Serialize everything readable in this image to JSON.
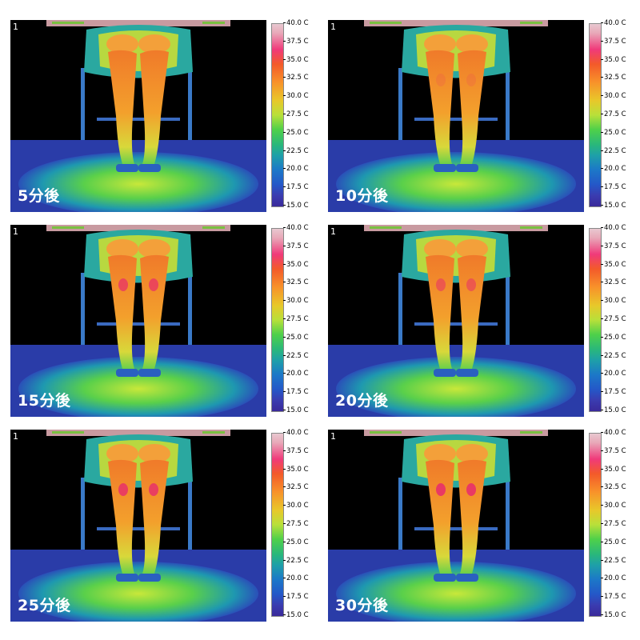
{
  "panels": [
    {
      "frame": "1",
      "caption": "5分後"
    },
    {
      "frame": "1",
      "caption": "10分後"
    },
    {
      "frame": "1",
      "caption": "15分後"
    },
    {
      "frame": "1",
      "caption": "20分後"
    },
    {
      "frame": "1",
      "caption": "25分後"
    },
    {
      "frame": "1",
      "caption": "30分後"
    }
  ],
  "scale": {
    "ticks": [
      "40.0 C",
      "37.5 C",
      "35.0 C",
      "32.5 C",
      "30.0 C",
      "27.5 C",
      "25.0 C",
      "22.5 C",
      "20.0 C",
      "17.5 C",
      "15.0 C"
    ]
  }
}
